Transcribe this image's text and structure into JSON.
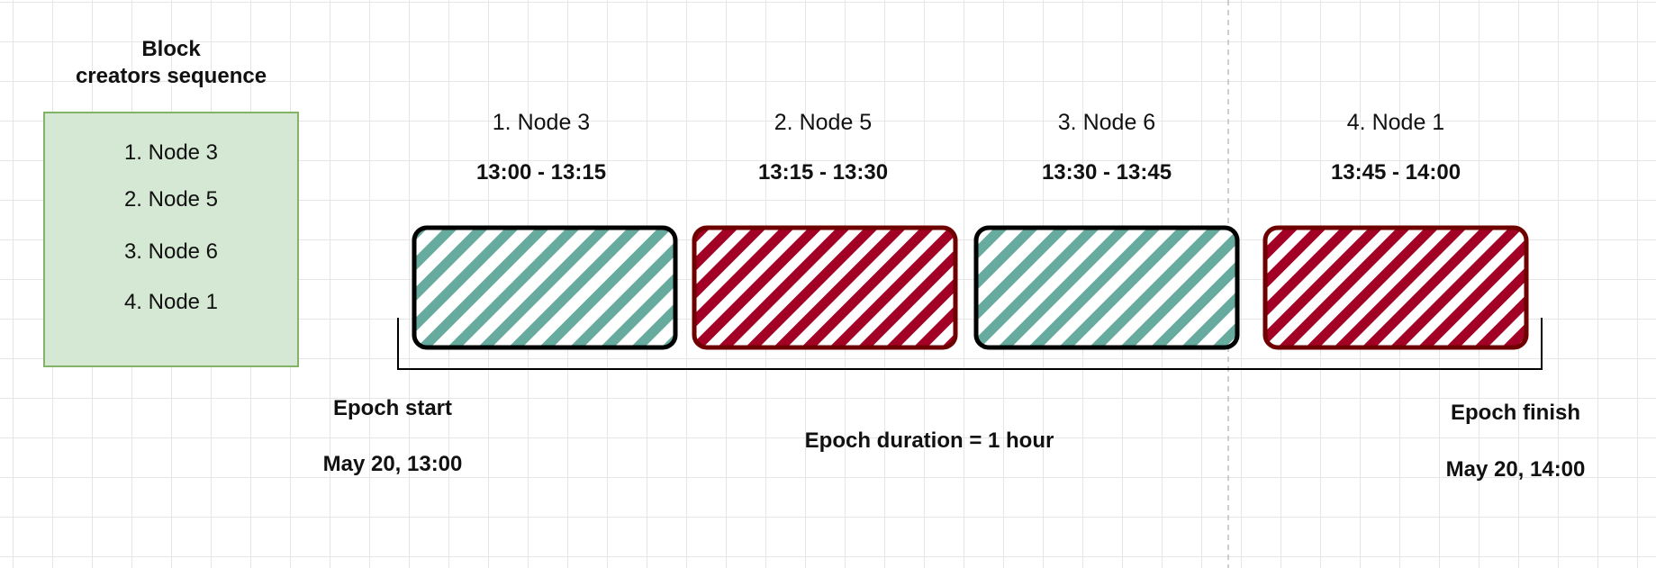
{
  "sequence": {
    "title_line1": "Block",
    "title_line2": "creators sequence",
    "items": [
      "1. Node 3",
      "2. Node 5",
      "3. Node 6",
      "4. Node 1"
    ]
  },
  "slots": [
    {
      "label": "1. Node 3",
      "time": "13:00 - 13:15",
      "color": "#67ab9f",
      "border": "#000000"
    },
    {
      "label": "2. Node 5",
      "time": "13:15 - 13:30",
      "color": "#a20025",
      "border": "#6f0000"
    },
    {
      "label": "3. Node 6",
      "time": "13:30 - 13:45",
      "color": "#67ab9f",
      "border": "#000000"
    },
    {
      "label": "4. Node 1",
      "time": "13:45 - 14:00",
      "color": "#a20025",
      "border": "#6f0000"
    }
  ],
  "epoch": {
    "start_label": "Epoch start",
    "start_date": "May 20, 13:00",
    "duration": "Epoch duration = 1 hour",
    "finish_label": "Epoch finish",
    "finish_date": "May 20, 14:00"
  }
}
